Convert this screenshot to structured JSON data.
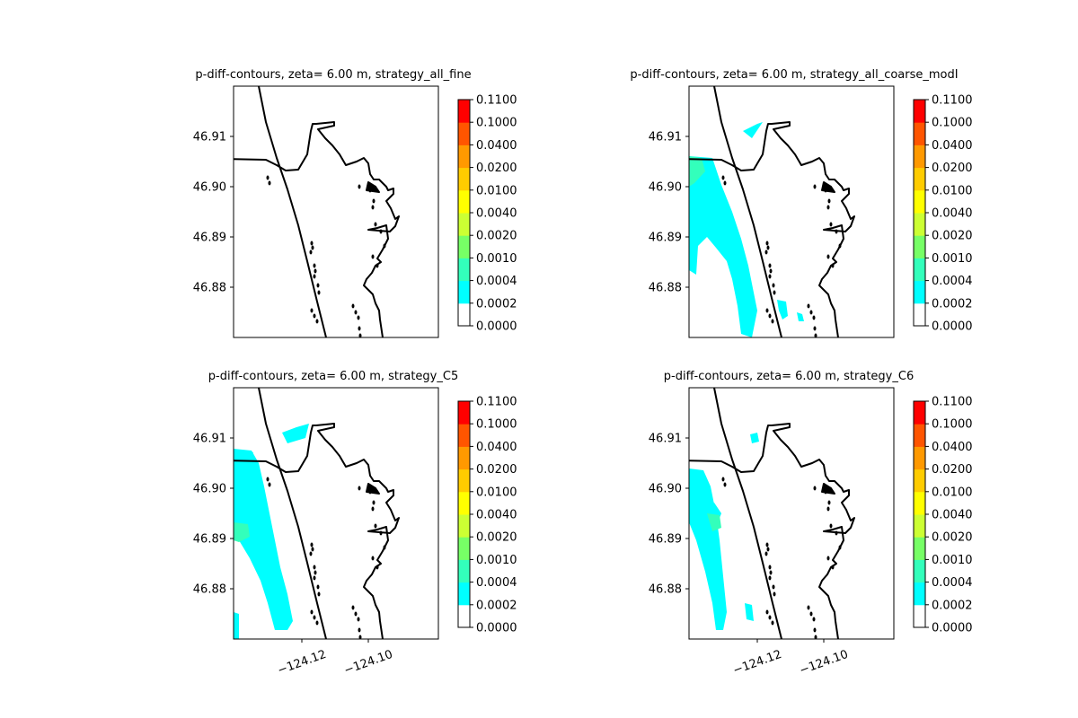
{
  "chart_data": [
    {
      "type": "heatmap",
      "title": "p-diff-contours, zeta= 6.00 m, strategy_all_fine",
      "y_ticks": [
        "46.91",
        "46.90",
        "46.89",
        "46.88"
      ],
      "x_ticks": [],
      "colorbar_levels": [
        "0.0000",
        "0.0002",
        "0.0004",
        "0.0010",
        "0.0020",
        "0.0040",
        "0.0100",
        "0.0200",
        "0.0400",
        "0.1000",
        "0.1100"
      ],
      "region": "none"
    },
    {
      "type": "heatmap",
      "title": "p-diff-contours, zeta= 6.00 m, strategy_all_coarse_modI",
      "y_ticks": [
        "46.91",
        "46.90",
        "46.89",
        "46.88"
      ],
      "x_ticks": [],
      "colorbar_levels": [
        "0.0000",
        "0.0002",
        "0.0004",
        "0.0010",
        "0.0020",
        "0.0040",
        "0.0100",
        "0.0200",
        "0.0400",
        "0.1000",
        "0.1100"
      ],
      "region": "coarse"
    },
    {
      "type": "heatmap",
      "title": "p-diff-contours, zeta= 6.00 m, strategy_C5",
      "y_ticks": [
        "46.91",
        "46.90",
        "46.89",
        "46.88"
      ],
      "x_ticks": [
        "−124.12",
        "−124.10"
      ],
      "colorbar_levels": [
        "0.0000",
        "0.0002",
        "0.0004",
        "0.0010",
        "0.0020",
        "0.0040",
        "0.0100",
        "0.0200",
        "0.0400",
        "0.1000",
        "0.1100"
      ],
      "region": "c5"
    },
    {
      "type": "heatmap",
      "title": "p-diff-contours, zeta= 6.00 m, strategy_C6",
      "y_ticks": [
        "46.91",
        "46.90",
        "46.89",
        "46.88"
      ],
      "x_ticks": [
        "−124.12",
        "−124.10"
      ],
      "colorbar_levels": [
        "0.0000",
        "0.0002",
        "0.0004",
        "0.0010",
        "0.0020",
        "0.0040",
        "0.0100",
        "0.0200",
        "0.0400",
        "0.1000",
        "0.1100"
      ],
      "region": "c6"
    }
  ],
  "colors": {
    "levels": [
      "#ffffff",
      "#00ffff",
      "#33ffbb",
      "#77ff66",
      "#ccff33",
      "#ffff00",
      "#ffcc00",
      "#ff9900",
      "#ff5500",
      "#ff0000"
    ],
    "cyan": "#00ffff",
    "teal": "#33ffbb",
    "coast": "#000000"
  }
}
